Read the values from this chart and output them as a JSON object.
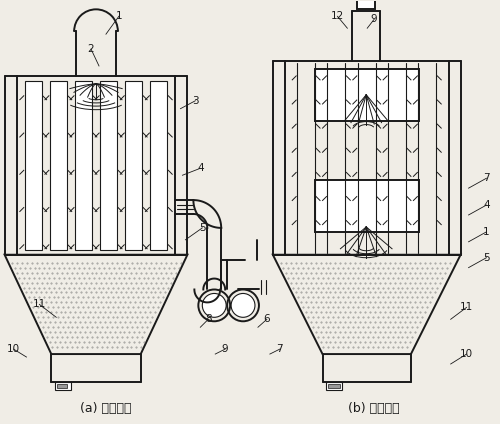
{
  "label_a": "(a) 上进气式",
  "label_b": "(b) 下进气式",
  "bg_color": "#f0ede6",
  "line_color": "#1a1a1a",
  "hopper_fill": "#d4c9a8",
  "hopper_dots": "#b8a880"
}
